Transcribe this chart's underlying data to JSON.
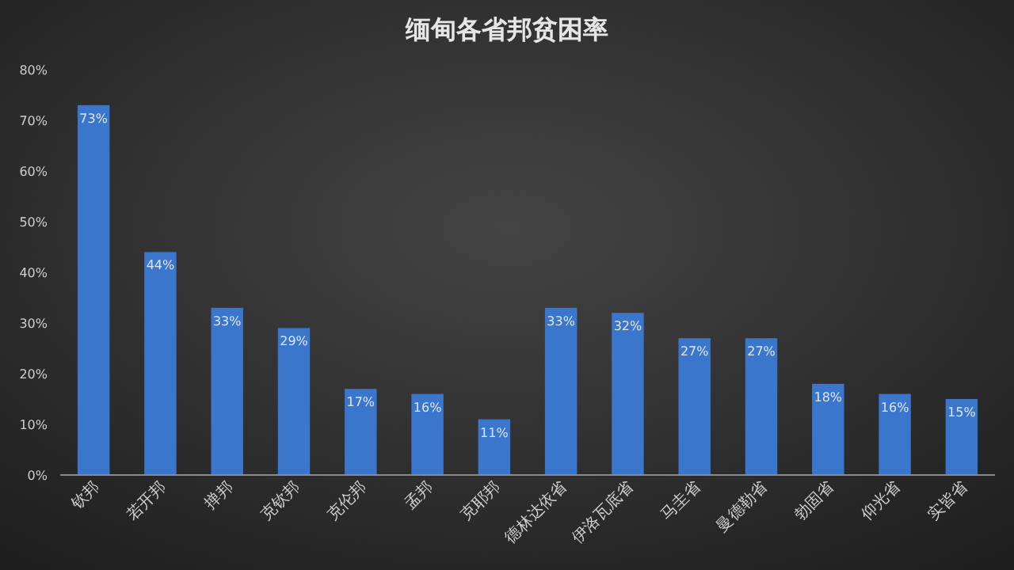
{
  "chart_data": {
    "type": "bar",
    "title": "缅甸各省邦贫困率",
    "categories": [
      "钦邦",
      "若开邦",
      "掸邦",
      "克钦邦",
      "克伦邦",
      "孟邦",
      "克耶邦",
      "德林达依省",
      "伊洛瓦底省",
      "马圭省",
      "曼德勒省",
      "勃固省",
      "仰光省",
      "实皆省"
    ],
    "values": [
      73,
      44,
      33,
      29,
      17,
      16,
      11,
      33,
      32,
      27,
      27,
      18,
      16,
      15
    ],
    "value_labels": [
      "73%",
      "44%",
      "33%",
      "29%",
      "17%",
      "16%",
      "11%",
      "33%",
      "32%",
      "27%",
      "27%",
      "18%",
      "16%",
      "15%"
    ],
    "color": "#3a76cc",
    "ylim": [
      0,
      80
    ],
    "yticks": [
      {
        "value": 0,
        "label": "0%"
      },
      {
        "value": 10,
        "label": "10%"
      },
      {
        "value": 20,
        "label": "20%"
      },
      {
        "value": 30,
        "label": "30%"
      },
      {
        "value": 40,
        "label": "40%"
      },
      {
        "value": 50,
        "label": "50%"
      },
      {
        "value": 60,
        "label": "60%"
      },
      {
        "value": 70,
        "label": "70%"
      },
      {
        "value": 80,
        "label": "80%"
      }
    ]
  }
}
